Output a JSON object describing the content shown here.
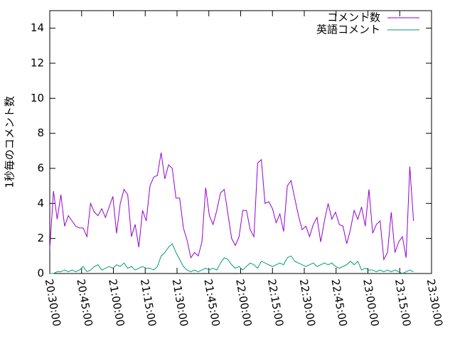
{
  "chart_data": {
    "type": "line",
    "ylabel": "1秒毎のコメント数",
    "x": [
      "20:30:00",
      "20:31:45",
      "20:33:30",
      "20:35:15",
      "20:37:00",
      "20:38:45",
      "20:40:30",
      "20:42:15",
      "20:44:00",
      "20:45:45",
      "20:47:30",
      "20:49:15",
      "20:51:00",
      "20:52:45",
      "20:54:30",
      "20:56:15",
      "20:58:00",
      "20:59:45",
      "21:01:30",
      "21:03:15",
      "21:05:00",
      "21:06:45",
      "21:08:30",
      "21:10:15",
      "21:12:00",
      "21:13:45",
      "21:15:30",
      "21:17:15",
      "21:19:00",
      "21:20:45",
      "21:22:30",
      "21:24:15",
      "21:26:00",
      "21:27:45",
      "21:29:30",
      "21:31:15",
      "21:33:00",
      "21:34:45",
      "21:36:30",
      "21:38:15",
      "21:40:00",
      "21:41:45",
      "21:43:30",
      "21:45:15",
      "21:47:00",
      "21:48:45",
      "21:50:30",
      "21:52:15",
      "21:54:00",
      "21:55:45",
      "21:57:30",
      "21:59:15",
      "22:01:00",
      "22:02:45",
      "22:04:30",
      "22:06:15",
      "22:08:00",
      "22:09:45",
      "22:11:30",
      "22:13:15",
      "22:15:00",
      "22:16:45",
      "22:18:30",
      "22:20:15",
      "22:22:00",
      "22:23:45",
      "22:25:30",
      "22:27:15",
      "22:29:00",
      "22:30:45",
      "22:32:30",
      "22:34:15",
      "22:36:00",
      "22:37:45",
      "22:39:30",
      "22:41:15",
      "22:43:00",
      "22:44:45",
      "22:46:30",
      "22:48:15",
      "22:50:00",
      "22:51:45",
      "22:53:30",
      "22:55:15",
      "22:57:00",
      "22:58:45",
      "23:00:30",
      "23:02:15",
      "23:04:00",
      "23:05:45",
      "23:07:30",
      "23:09:15",
      "23:11:00",
      "23:12:45",
      "23:14:30",
      "23:16:15",
      "23:18:00",
      "23:19:45",
      "23:21:30"
    ],
    "series": [
      {
        "name": "コメント数",
        "color": "#9400d3",
        "values": [
          1.4,
          4.7,
          3.1,
          4.5,
          2.7,
          3.3,
          3.0,
          2.7,
          2.6,
          2.6,
          2.1,
          4.0,
          3.5,
          3.3,
          3.7,
          3.2,
          3.8,
          4.4,
          2.3,
          4.0,
          4.8,
          4.5,
          2.1,
          2.8,
          1.5,
          3.6,
          3.0,
          5.0,
          5.5,
          5.6,
          6.9,
          5.4,
          6.2,
          6.0,
          4.3,
          4.3,
          2.6,
          1.9,
          0.9,
          1.2,
          1.0,
          1.8,
          4.9,
          3.3,
          2.8,
          3.6,
          4.6,
          4.8,
          3.4,
          2.0,
          1.6,
          2.1,
          3.6,
          3.6,
          2.5,
          2.1,
          6.3,
          6.5,
          4.0,
          4.1,
          3.7,
          2.9,
          3.4,
          2.4,
          5.0,
          5.3,
          4.3,
          3.3,
          2.5,
          2.7,
          2.1,
          2.8,
          3.2,
          1.8,
          3.0,
          4.0,
          3.1,
          3.5,
          2.8,
          2.7,
          1.7,
          2.5,
          3.6,
          3.1,
          3.8,
          2.7,
          4.8,
          2.3,
          2.8,
          3.0,
          0.8,
          1.2,
          3.5,
          1.2,
          1.8,
          2.1,
          0.9,
          6.1,
          3.0
        ]
      },
      {
        "name": "英語コメント",
        "color": "#009e73",
        "values": [
          0,
          0,
          0.1,
          0.1,
          0.2,
          0.1,
          0.2,
          0.1,
          0.2,
          0.4,
          0.1,
          0.2,
          0.4,
          0.5,
          0.2,
          0.3,
          0.4,
          0.3,
          0.5,
          0.4,
          0.6,
          0.3,
          0.4,
          0.2,
          0.3,
          0.4,
          0.3,
          0.3,
          0.2,
          0.4,
          1.0,
          1.2,
          1.5,
          1.7,
          1.2,
          0.8,
          0.4,
          0.2,
          0.1,
          0.2,
          0.1,
          0.2,
          0.3,
          0.2,
          0.3,
          0.2,
          0.6,
          0.9,
          0.8,
          0.5,
          0.3,
          0.4,
          0.2,
          0.4,
          0.6,
          0.5,
          0.3,
          0.7,
          0.6,
          0.5,
          0.4,
          0.5,
          0.6,
          0.5,
          0.9,
          1.0,
          0.7,
          0.6,
          0.5,
          0.4,
          0.5,
          0.6,
          0.4,
          0.5,
          0.6,
          0.5,
          0.6,
          0.4,
          0.3,
          0.4,
          0.5,
          0.7,
          0.5,
          0.7,
          0.2,
          0.3,
          0.2,
          0.2,
          0.1,
          0.2,
          0.1,
          0.2,
          0.1,
          0.2,
          0.1,
          0.0,
          0.1,
          0.2,
          0.1
        ]
      }
    ],
    "xlim": [
      "20:30:00",
      "23:30:00"
    ],
    "xticks": [
      "20:30:00",
      "20:45:00",
      "21:00:00",
      "21:15:00",
      "21:30:00",
      "21:45:00",
      "22:00:00",
      "22:15:00",
      "22:30:00",
      "22:45:00",
      "23:00:00",
      "23:15:00",
      "23:30:00"
    ],
    "ylim": [
      0,
      15
    ],
    "yticks": [
      0,
      2,
      4,
      6,
      8,
      10,
      12,
      14
    ],
    "legend": "upper right"
  }
}
